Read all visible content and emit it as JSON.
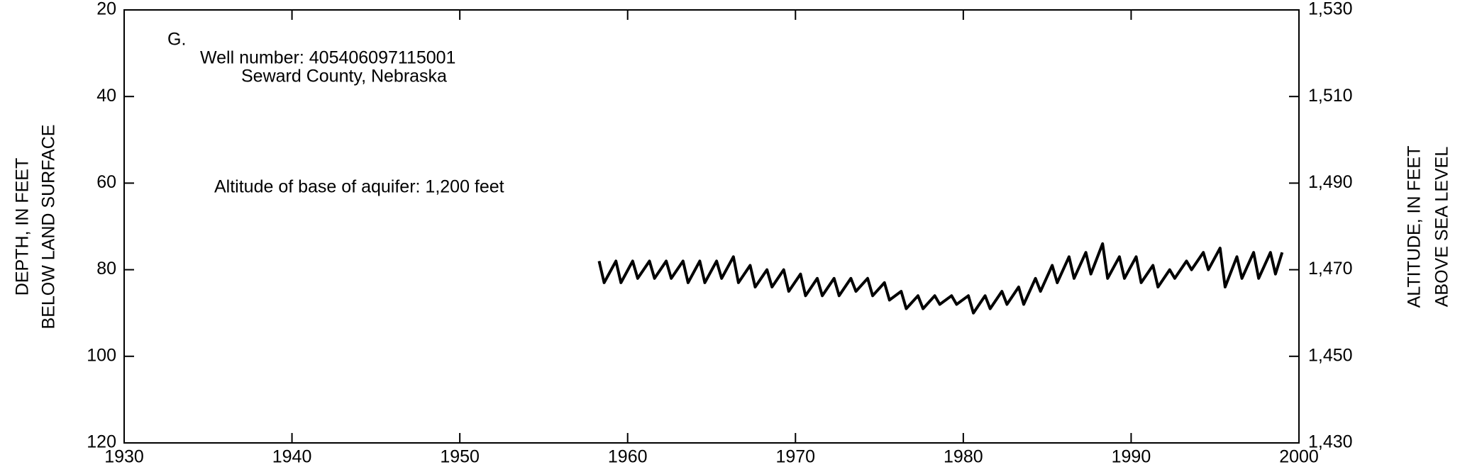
{
  "chart_data": {
    "type": "line",
    "y_label_lines": [
      "DEPTH, IN FEET",
      "BELOW LAND SURFACE"
    ],
    "y2_label_lines": [
      "ALTITUDE, IN FEET",
      "ABOVE SEA LEVEL"
    ],
    "annotations": [
      "G.",
      "Well number: 405406097115001",
      "Seward County, Nebraska",
      "Altitude of base of aquifer: 1,200 feet"
    ],
    "xlim": [
      1930,
      2000
    ],
    "xticks": [
      1930,
      1940,
      1950,
      1960,
      1970,
      1980,
      1990,
      2000
    ],
    "ylim": [
      120,
      20
    ],
    "yticks": [
      20,
      40,
      60,
      80,
      100,
      120
    ],
    "y2lim": [
      1430,
      1530
    ],
    "y2ticks": [
      {
        "value": 1430,
        "label": "1,430"
      },
      {
        "value": 1450,
        "label": "1,450"
      },
      {
        "value": 1470,
        "label": "1,470"
      },
      {
        "value": 1490,
        "label": "1,490"
      },
      {
        "value": 1510,
        "label": "1,510"
      },
      {
        "value": 1530,
        "label": "1,530"
      }
    ],
    "series": [
      {
        "color": "#000000",
        "x": [
          1958.3,
          1958.6,
          1959.3,
          1959.6,
          1960.3,
          1960.6,
          1961.3,
          1961.6,
          1962.3,
          1962.6,
          1963.3,
          1963.6,
          1964.3,
          1964.6,
          1965.3,
          1965.6,
          1966.3,
          1966.6,
          1967.3,
          1967.6,
          1968.3,
          1968.6,
          1969.3,
          1969.6,
          1970.3,
          1970.6,
          1971.3,
          1971.6,
          1972.3,
          1972.6,
          1973.3,
          1973.6,
          1974.3,
          1974.6,
          1975.3,
          1975.6,
          1976.3,
          1976.6,
          1977.3,
          1977.6,
          1978.3,
          1978.6,
          1979.3,
          1979.6,
          1980.3,
          1980.6,
          1981.3,
          1981.6,
          1982.3,
          1982.6,
          1983.3,
          1983.6,
          1984.3,
          1984.6,
          1985.3,
          1985.6,
          1986.3,
          1986.6,
          1987.3,
          1987.6,
          1988.3,
          1988.6,
          1989.3,
          1989.6,
          1990.3,
          1990.6,
          1991.3,
          1991.6,
          1992.3,
          1992.6,
          1993.3,
          1993.6,
          1994.3,
          1994.6,
          1995.3,
          1995.6,
          1996.3,
          1996.6,
          1997.3,
          1997.6,
          1998.3,
          1998.6,
          1999.0
        ],
        "values": [
          78,
          83,
          78,
          83,
          78,
          82,
          78,
          82,
          78,
          82,
          78,
          83,
          78,
          83,
          78,
          82,
          77,
          83,
          79,
          84,
          80,
          84,
          80,
          85,
          81,
          86,
          82,
          86,
          82,
          86,
          82,
          85,
          82,
          86,
          83,
          87,
          85,
          89,
          86,
          89,
          86,
          88,
          86,
          88,
          86,
          90,
          86,
          89,
          85,
          88,
          84,
          88,
          82,
          85,
          79,
          83,
          77,
          82,
          76,
          81,
          74,
          82,
          77,
          82,
          77,
          83,
          79,
          84,
          80,
          82,
          78,
          80,
          76,
          80,
          75,
          84,
          77,
          82,
          76,
          82,
          76,
          81,
          76
        ]
      }
    ]
  }
}
